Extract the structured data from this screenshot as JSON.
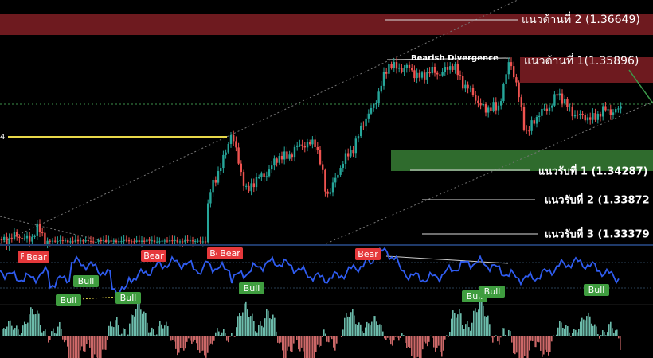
{
  "levels": {
    "resistance": [
      "แนวต้านที่ 2 (1.36649)",
      "แนวต้านที่ 1(1.35896)"
    ],
    "support": [
      "แนวรับที่ 1 (1.34287)",
      "แนวรับที่ 2 (1.33872",
      "แนวรับที่ 3 (1.33379"
    ]
  },
  "annotations": {
    "divergence": "Bearish Divergence",
    "left_edge": "4"
  },
  "oscillator": {
    "bear_tags": [
      "Bear",
      "Bear",
      "Bear",
      "Bear",
      "Bear",
      "Bear"
    ],
    "bull_tags": [
      "Bull",
      "Bull",
      "Bull",
      "Bull",
      "Bull",
      "Bull",
      "Bull"
    ]
  }
}
